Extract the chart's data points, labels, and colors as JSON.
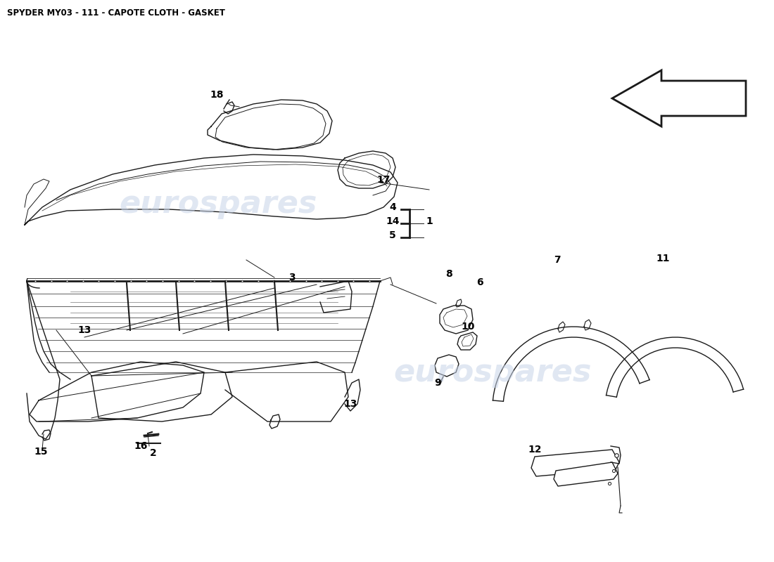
{
  "title": "SPYDER MY03 - 111 - CAPOTE CLOTH - GASKET",
  "title_fontsize": 8.5,
  "background_color": "#ffffff",
  "watermark_text": "eurospares",
  "watermark_color": "#c8d4e8",
  "watermark_fontsize": 32,
  "label_fontsize": 10,
  "line_color": "#1a1a1a",
  "label_color": "#000000"
}
